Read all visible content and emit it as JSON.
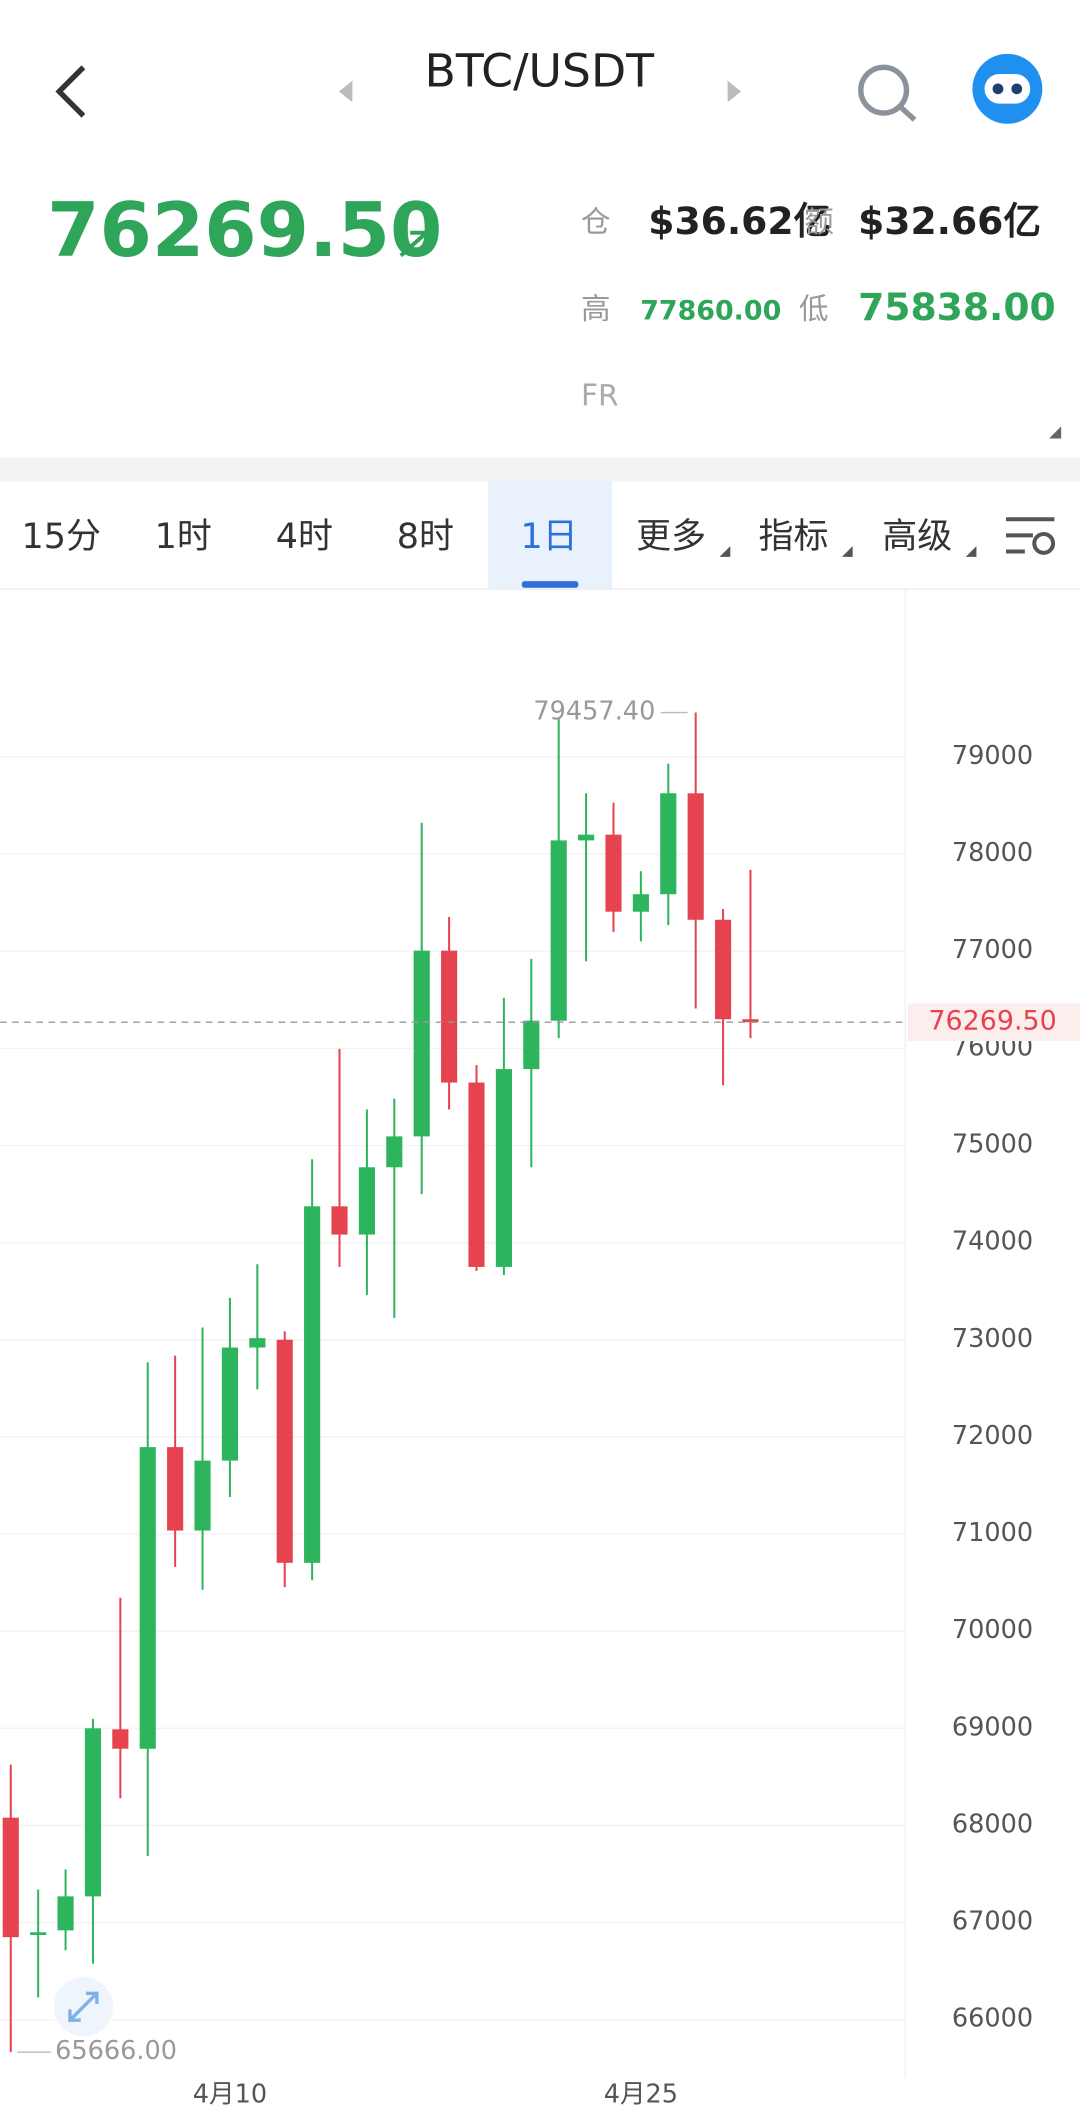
{
  "header": {
    "pair": "BTC/USDT",
    "price": "76269.50",
    "oi_label": "仓",
    "oi_value": "$36.62亿",
    "vol_label": "额",
    "vol_value": "$32.66亿",
    "high_label": "高",
    "high_value": "77860.00",
    "low_label": "低",
    "low_value": "75838.00",
    "fr_label": "FR"
  },
  "tabs": [
    "15分",
    "1时",
    "4时",
    "8时",
    "1日",
    "更多",
    "指标",
    "高级"
  ],
  "chart_data": {
    "type": "candlestick",
    "categories": [
      null,
      null,
      null,
      null,
      null,
      null,
      null,
      null,
      "4月10",
      null,
      null,
      null,
      null,
      null,
      null,
      null,
      null,
      null,
      null,
      null,
      null,
      null,
      null,
      "4月25",
      null,
      null,
      null,
      null
    ],
    "open": [
      68080,
      66880,
      66920,
      67270,
      68990,
      68790,
      71895,
      71036,
      71756,
      72920,
      73000,
      70704,
      74374,
      74083,
      74776,
      75094,
      77006,
      75648,
      73750,
      75787,
      76285,
      78141,
      78200,
      77407,
      77587,
      78626,
      77324,
      76300
    ],
    "close": [
      66850,
      66900,
      67270,
      69000,
      68790,
      71895,
      71036,
      71756,
      72920,
      73017,
      70704,
      74374,
      74083,
      74776,
      75094,
      77006,
      75648,
      73750,
      75787,
      76285,
      78141,
      78200,
      77407,
      77587,
      78626,
      77324,
      76300,
      76269.5
    ],
    "high": [
      68626,
      67340,
      67546,
      69097,
      70344,
      72767,
      72837,
      73127,
      73432,
      73778,
      73086,
      74859,
      75995,
      75371,
      75482,
      78321,
      77352,
      75828,
      76521,
      76922,
      79400,
      78626,
      78529,
      77823,
      78931,
      79457.4,
      77435,
      77837
    ],
    "low": [
      65666,
      66230,
      66715,
      66576,
      68280,
      67684,
      70662,
      70427,
      71382,
      72490,
      70454,
      70524,
      73750,
      73460,
      73224,
      74499,
      75371,
      73709,
      73667,
      74776,
      76105,
      76895,
      77199,
      77102,
      77269,
      76410,
      75620,
      76105
    ],
    "up_color": "#2db55d",
    "down_color": "#e5434f",
    "annotations": [
      "79457.40",
      "65666.00",
      "76269.50"
    ],
    "ylim": [
      65400,
      80700
    ],
    "yticks": [
      66000,
      67000,
      68000,
      69000,
      70000,
      71000,
      72000,
      73000,
      74000,
      75000,
      76000,
      77000,
      78000,
      79000
    ],
    "grid": true
  }
}
